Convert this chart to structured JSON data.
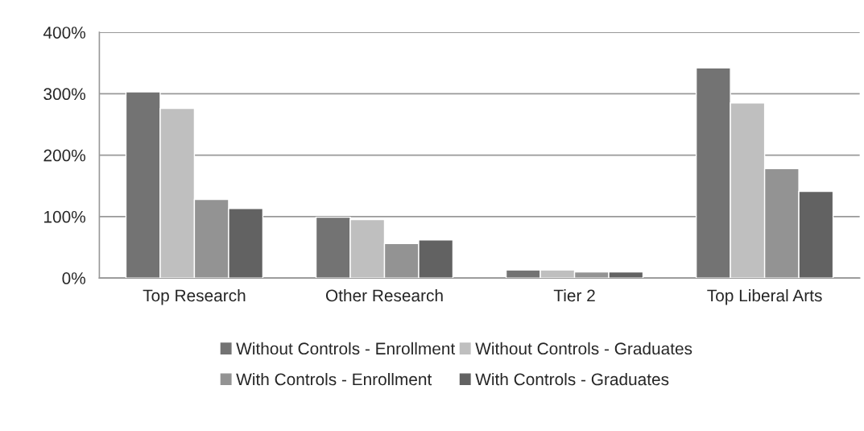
{
  "chart_data": {
    "type": "bar",
    "categories": [
      "Top Research",
      "Other Research",
      "Tier 2",
      "Top Liberal Arts"
    ],
    "series": [
      {
        "name": "Without Controls - Enrollment",
        "color": "#737373",
        "values": [
          303,
          99,
          13,
          342
        ]
      },
      {
        "name": "Without Controls - Graduates",
        "color": "#bfbfbf",
        "values": [
          276,
          95,
          13,
          285
        ]
      },
      {
        "name": "With Controls - Enrollment",
        "color": "#939393",
        "values": [
          128,
          56,
          10,
          178
        ]
      },
      {
        "name": "With Controls - Graduates",
        "color": "#626262",
        "values": [
          113,
          62,
          10,
          141
        ]
      }
    ],
    "ylim": [
      0,
      400
    ],
    "yticks": [
      {
        "value": 0,
        "label": "0%"
      },
      {
        "value": 100,
        "label": "100%"
      },
      {
        "value": 200,
        "label": "200%"
      },
      {
        "value": 300,
        "label": "300%"
      },
      {
        "value": 400,
        "label": "400%"
      }
    ],
    "grid": "y",
    "legend": "bottom"
  }
}
